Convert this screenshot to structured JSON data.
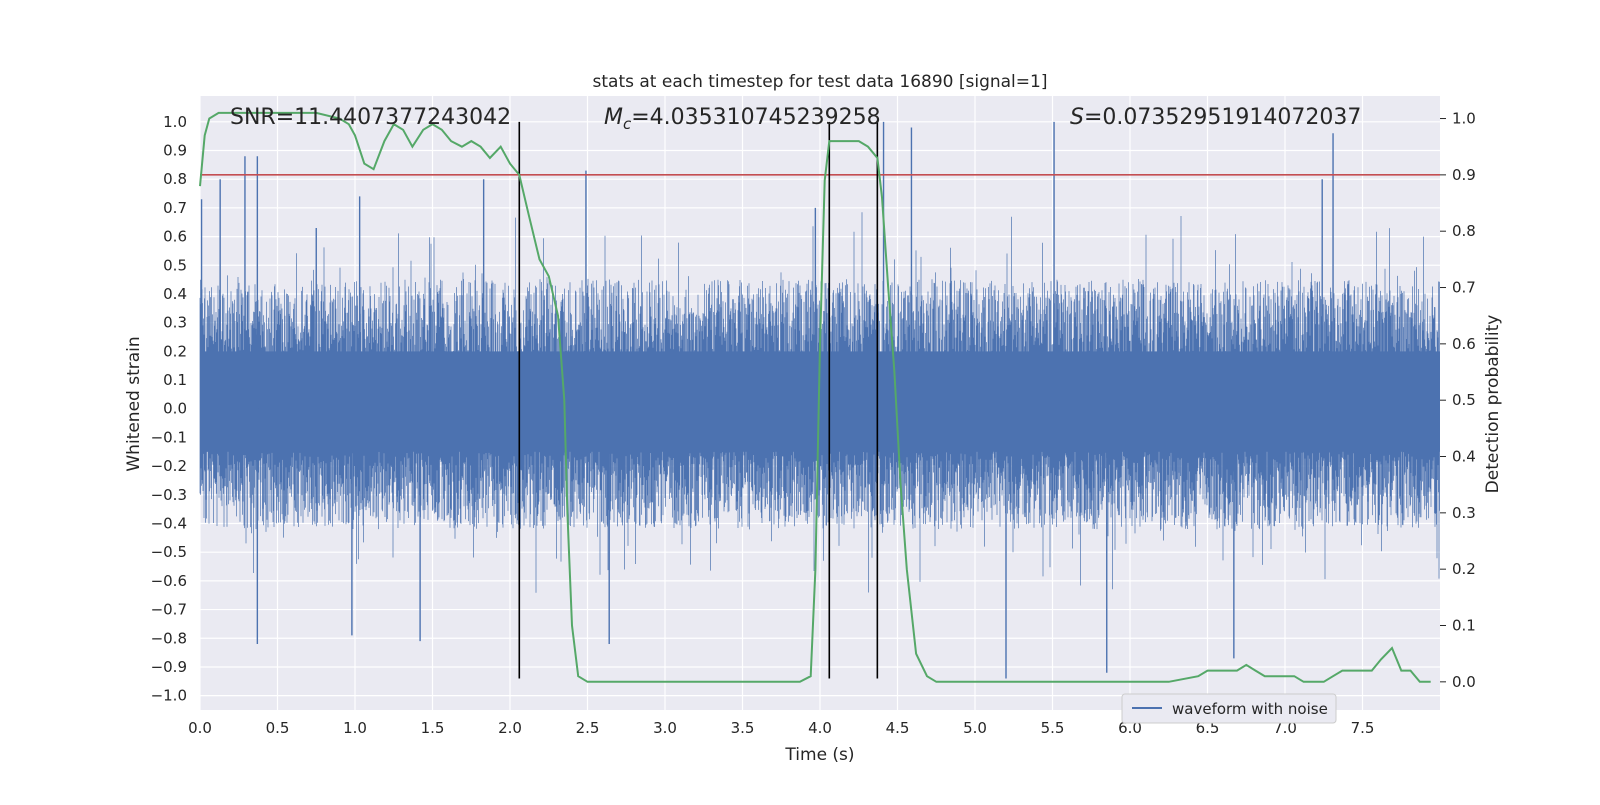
{
  "chart_data": {
    "type": "line",
    "title": "stats at each timestep for test data 16890 [signal=1]",
    "xlabel": "Time (s)",
    "ylabel": "Whitened strain",
    "y2label": "Detection probability",
    "xlim": [
      0,
      8
    ],
    "ylim": [
      -1.05,
      1.09
    ],
    "y2lim": [
      -0.05,
      1.04
    ],
    "grid": true,
    "x_ticks": [
      0.0,
      0.5,
      1.0,
      1.5,
      2.0,
      2.5,
      3.0,
      3.5,
      4.0,
      4.5,
      5.0,
      5.5,
      6.0,
      6.5,
      7.0,
      7.5
    ],
    "x_tick_labels": [
      "0.0",
      "0.5",
      "1.0",
      "1.5",
      "2.0",
      "2.5",
      "3.0",
      "3.5",
      "4.0",
      "4.5",
      "5.0",
      "5.5",
      "6.0",
      "6.5",
      "7.0",
      "7.5"
    ],
    "y_ticks": [
      1.0,
      0.9,
      0.8,
      0.7,
      0.6,
      0.5,
      0.4,
      0.3,
      0.2,
      0.1,
      0.0,
      -0.1,
      -0.2,
      -0.3,
      -0.4,
      -0.5,
      -0.6,
      -0.7,
      -0.8,
      -0.9,
      -1.0
    ],
    "y_tick_labels": [
      "1.0",
      "0.9",
      "0.8",
      "0.7",
      "0.6",
      "0.5",
      "0.4",
      "0.3",
      "0.2",
      "0.1",
      "0.0",
      "−0.1",
      "−0.2",
      "−0.3",
      "−0.4",
      "−0.5",
      "−0.6",
      "−0.7",
      "−0.8",
      "−0.9",
      "−1.0"
    ],
    "y2_ticks": [
      1.0,
      0.9,
      0.8,
      0.7,
      0.6,
      0.5,
      0.4,
      0.3,
      0.2,
      0.1,
      0.0
    ],
    "y2_tick_labels": [
      "1.0",
      "0.9",
      "0.8",
      "0.7",
      "0.6",
      "0.5",
      "0.4",
      "0.3",
      "0.2",
      "0.1",
      "0.0"
    ],
    "annotations": {
      "snr": "SNR=11.4407377243042",
      "mc_symbol": "M",
      "mc_sub": "c",
      "mc_value": "=4.035310745239258",
      "s_symbol": "S",
      "s_value": "=0.07352951914072037"
    },
    "threshold": {
      "value": 0.9,
      "axis": "y2",
      "color": "#c44e52"
    },
    "vertical_lines": [
      2.06,
      4.06,
      4.37
    ],
    "strain_spikes": [
      {
        "x": 0.01,
        "y": 0.73
      },
      {
        "x": 0.13,
        "y": 0.8
      },
      {
        "x": 0.29,
        "y": 0.88
      },
      {
        "x": 0.37,
        "y": 0.88
      },
      {
        "x": 0.37,
        "y": -0.82
      },
      {
        "x": 0.75,
        "y": 0.63
      },
      {
        "x": 1.03,
        "y": 0.74
      },
      {
        "x": 0.98,
        "y": -0.79
      },
      {
        "x": 1.42,
        "y": -0.81
      },
      {
        "x": 1.83,
        "y": 0.8
      },
      {
        "x": 2.49,
        "y": 0.83
      },
      {
        "x": 2.64,
        "y": -0.82
      },
      {
        "x": 3.97,
        "y": 0.7
      },
      {
        "x": 4.41,
        "y": 1.0
      },
      {
        "x": 4.59,
        "y": 0.98
      },
      {
        "x": 5.2,
        "y": -0.94
      },
      {
        "x": 5.51,
        "y": 1.0
      },
      {
        "x": 5.85,
        "y": -0.92
      },
      {
        "x": 6.67,
        "y": -0.87
      },
      {
        "x": 7.24,
        "y": 0.8
      },
      {
        "x": 7.31,
        "y": 0.96
      }
    ],
    "series": [
      {
        "name": "waveform with noise",
        "axis": "y",
        "color": "#4c72b0",
        "typical_envelope": [
          -0.42,
          0.45
        ]
      },
      {
        "name": "detection probability",
        "axis": "y2",
        "color": "#55a868",
        "x": [
          0.0,
          0.03,
          0.06,
          0.12,
          0.25,
          0.5,
          0.75,
          0.9,
          0.96,
          1.0,
          1.06,
          1.12,
          1.19,
          1.25,
          1.31,
          1.37,
          1.44,
          1.5,
          1.56,
          1.62,
          1.69,
          1.75,
          1.81,
          1.87,
          1.94,
          2.0,
          2.06,
          2.12,
          2.19,
          2.25,
          2.31,
          2.35,
          2.37,
          2.4,
          2.44,
          2.5,
          2.56,
          2.62,
          2.75,
          2.87,
          3.0,
          3.25,
          3.5,
          3.75,
          3.87,
          3.94,
          3.97,
          4.0,
          4.03,
          4.06,
          4.12,
          4.25,
          4.31,
          4.37,
          4.4,
          4.44,
          4.48,
          4.52,
          4.56,
          4.62,
          4.69,
          4.75,
          5.0,
          5.5,
          6.0,
          6.25,
          6.44,
          6.5,
          6.56,
          6.62,
          6.69,
          6.75,
          6.81,
          6.87,
          6.94,
          7.0,
          7.06,
          7.12,
          7.19,
          7.25,
          7.31,
          7.37,
          7.44,
          7.5,
          7.56,
          7.62,
          7.69,
          7.75,
          7.81,
          7.87,
          7.94
        ],
        "y": [
          0.88,
          0.97,
          1.0,
          1.01,
          1.01,
          1.01,
          1.01,
          1.0,
          0.99,
          0.97,
          0.92,
          0.91,
          0.96,
          0.99,
          0.98,
          0.95,
          0.98,
          0.99,
          0.98,
          0.96,
          0.95,
          0.96,
          0.95,
          0.93,
          0.95,
          0.92,
          0.9,
          0.83,
          0.75,
          0.72,
          0.65,
          0.5,
          0.3,
          0.1,
          0.01,
          0.0,
          0.0,
          0.0,
          0.0,
          0.0,
          0.0,
          0.0,
          0.0,
          0.0,
          0.0,
          0.01,
          0.2,
          0.6,
          0.89,
          0.96,
          0.96,
          0.96,
          0.95,
          0.93,
          0.86,
          0.7,
          0.55,
          0.35,
          0.2,
          0.05,
          0.01,
          0.0,
          0.0,
          0.0,
          0.0,
          0.0,
          0.01,
          0.02,
          0.02,
          0.02,
          0.02,
          0.03,
          0.02,
          0.01,
          0.01,
          0.01,
          0.01,
          0.0,
          0.0,
          0.0,
          0.01,
          0.02,
          0.02,
          0.02,
          0.02,
          0.04,
          0.06,
          0.02,
          0.02,
          0.0,
          0.0
        ]
      }
    ],
    "legend": {
      "entries": [
        "waveform with noise"
      ],
      "placement": "lower-right"
    }
  }
}
